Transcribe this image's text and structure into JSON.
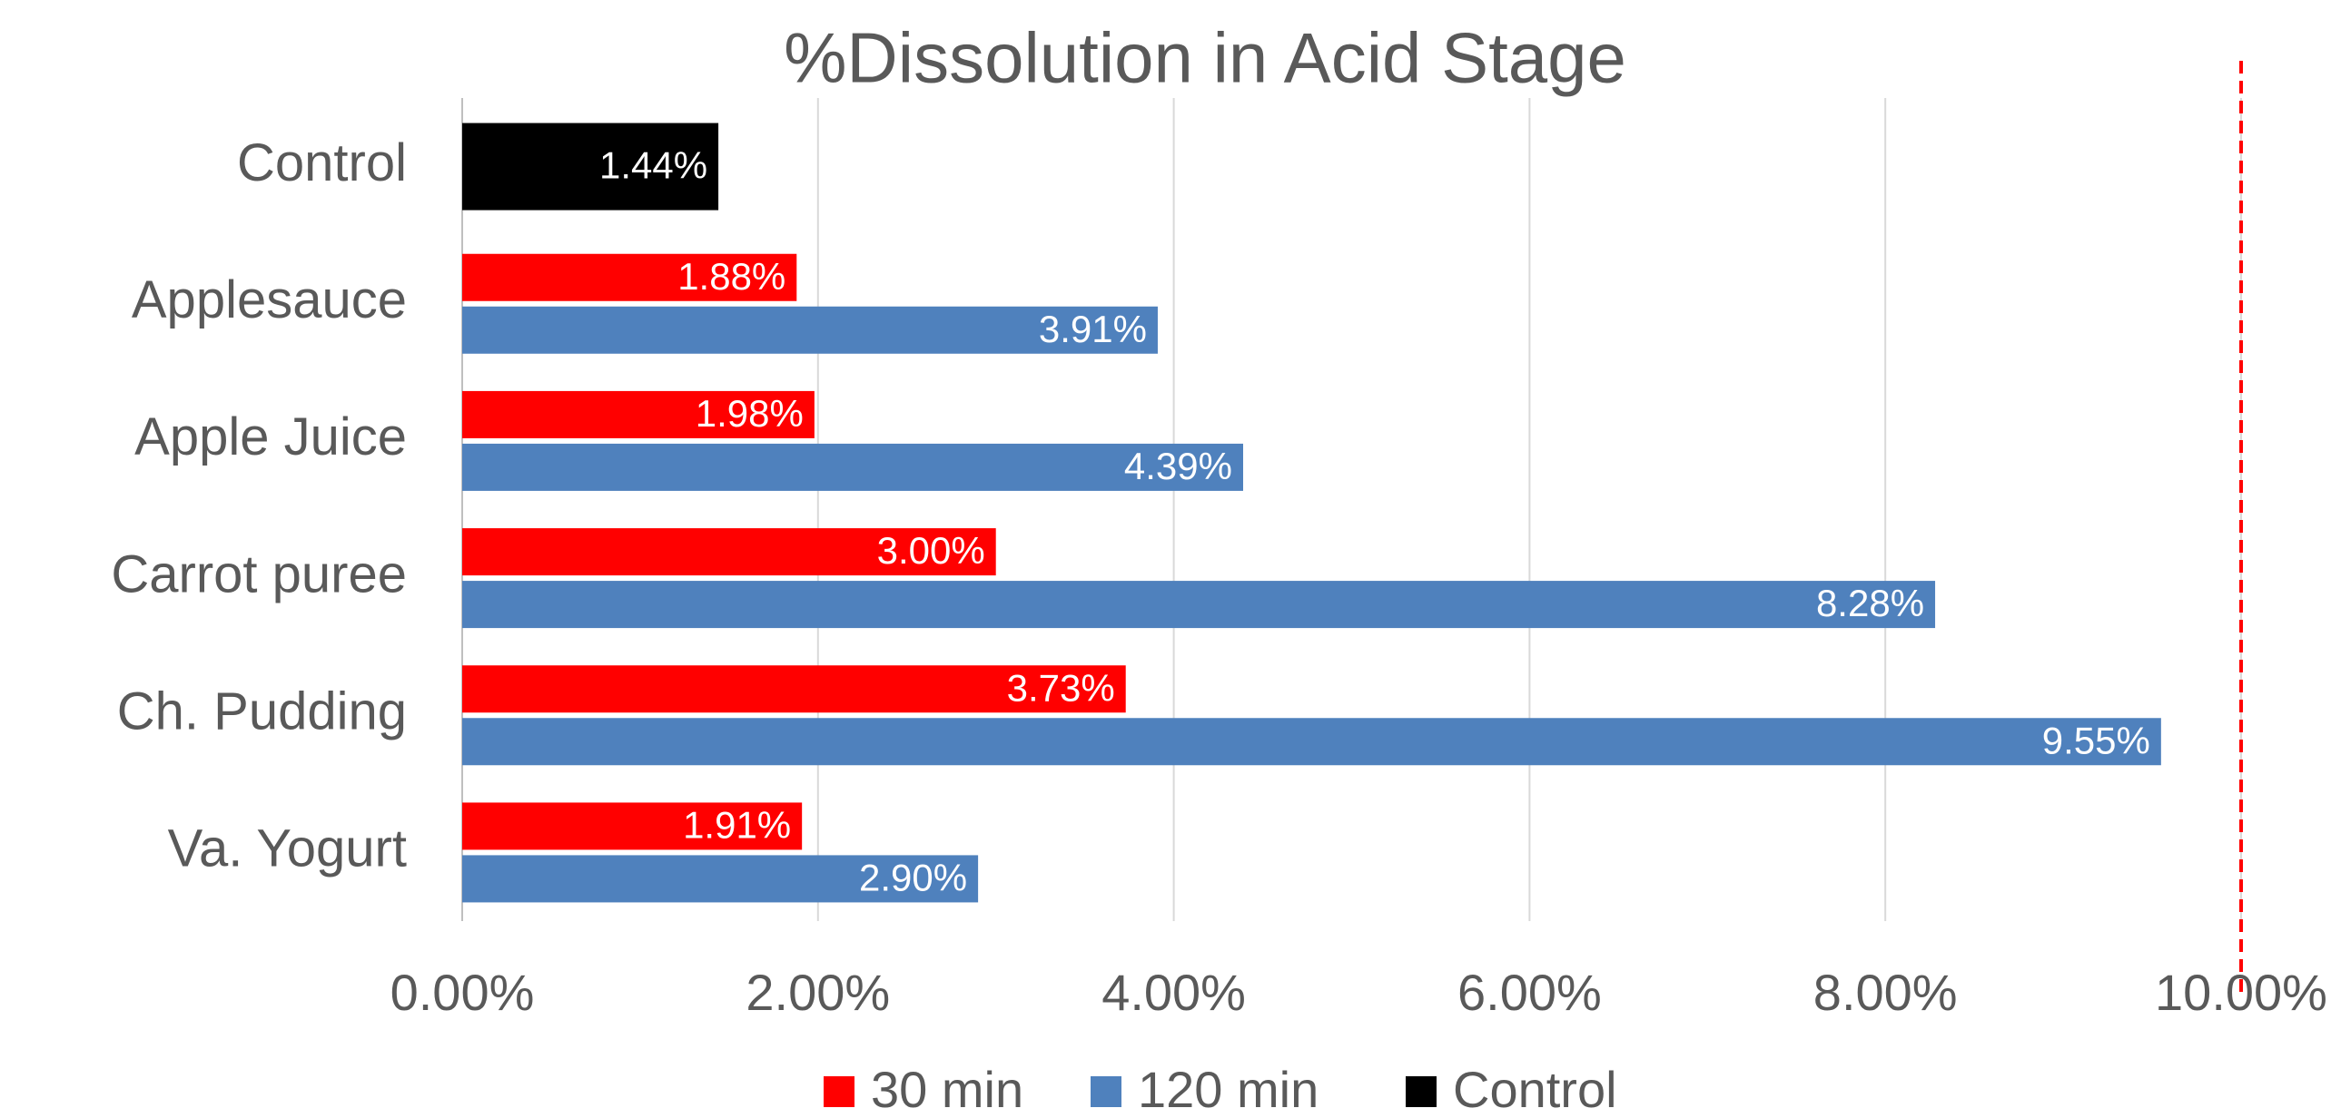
{
  "chart_data": {
    "type": "bar",
    "orientation": "horizontal",
    "title": "%Dissolution in Acid Stage",
    "categories": [
      "Control",
      "Applesauce",
      "Apple Juice",
      "Carrot puree",
      "Ch. Pudding",
      "Va. Yogurt"
    ],
    "series": [
      {
        "name": "30 min",
        "color": "#ff0000",
        "values": [
          null,
          1.88,
          1.98,
          3.0,
          3.73,
          1.91
        ],
        "value_labels": [
          null,
          "1.88%",
          "1.98%",
          "3.00%",
          "3.73%",
          "1.91%"
        ]
      },
      {
        "name": "120 min",
        "color": "#4f81bd",
        "values": [
          null,
          3.91,
          4.39,
          8.28,
          9.55,
          2.9
        ],
        "value_labels": [
          null,
          "3.91%",
          "4.39%",
          "8.28%",
          "9.55%",
          "2.90%"
        ]
      },
      {
        "name": "Control",
        "color": "#000000",
        "values": [
          1.44,
          null,
          null,
          null,
          null,
          null
        ],
        "value_labels": [
          "1.44%",
          null,
          null,
          null,
          null,
          null
        ]
      }
    ],
    "xlim": [
      0,
      10
    ],
    "xticks": [
      {
        "value": 0,
        "label": "0.00%"
      },
      {
        "value": 2,
        "label": "2.00%"
      },
      {
        "value": 4,
        "label": "4.00%"
      },
      {
        "value": 6,
        "label": "6.00%"
      },
      {
        "value": 8,
        "label": "8.00%"
      },
      {
        "value": 10,
        "label": "10.00%"
      }
    ],
    "grid": true,
    "legend": "bottom",
    "reference_line": {
      "value": 10,
      "color": "#ff0000",
      "style": "dashed"
    }
  }
}
